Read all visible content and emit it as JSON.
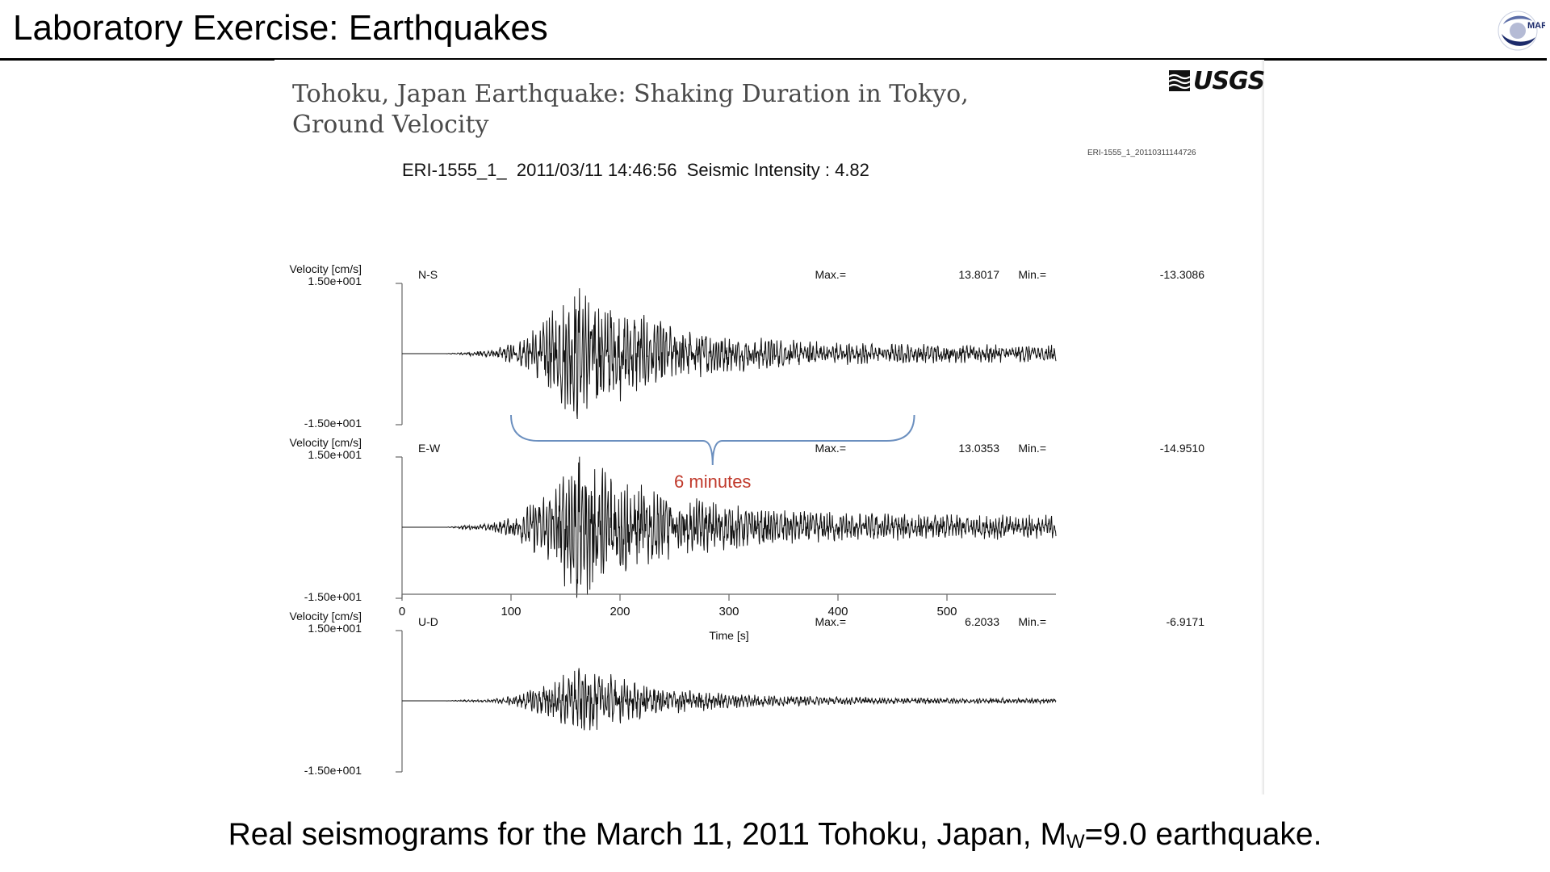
{
  "slide": {
    "title": "Laboratory Exercise: Earthquakes",
    "logo_text": "MARE"
  },
  "figure": {
    "source_logo": "USGS",
    "title_line1": "Tohoku, Japan Earthquake: Shaking Duration in Tokyo,",
    "title_line2": "Ground Velocity",
    "record_id_small": "ERI-1555_1_20110311144726"
  },
  "chart_data": {
    "type": "line",
    "title": "ERI-1555_1_  2011/03/11 14:46:56  Seismic Intensity : 4.82",
    "xlabel": "Time [s]",
    "xlim": [
      0,
      600
    ],
    "xticks": [
      0,
      100,
      200,
      300,
      400,
      500
    ],
    "series": [
      {
        "name": "N-S",
        "ylabel": "Velocity [cm/s]",
        "ymax_label": "1.50e+001",
        "ymin_label": "-1.50e+001",
        "ylim": [
          -15,
          15
        ],
        "max_label": "Max.=",
        "max_value": "13.8017",
        "min_label": "Min.=",
        "min_value": "-13.3086",
        "onset_s": 60,
        "peak_s": 160,
        "peak_amp": 13.8,
        "tail_amp": 1.6
      },
      {
        "name": "E-W",
        "ylabel": "Velocity [cm/s]",
        "ymax_label": "1.50e+001",
        "ymin_label": "-1.50e+001",
        "ylim": [
          -15,
          15
        ],
        "max_label": "Max.=",
        "max_value": "13.0353",
        "min_label": "Min.=",
        "min_value": "-14.9510",
        "onset_s": 60,
        "peak_s": 160,
        "peak_amp": 14.9,
        "tail_amp": 2.2
      },
      {
        "name": "U-D",
        "ylabel": "Velocity [cm/s]",
        "ymax_label": "1.50e+001",
        "ymin_label": "-1.50e+001",
        "ylim": [
          -15,
          15
        ],
        "max_label": "Max.=",
        "max_value": "6.2033",
        "min_label": "Min.=",
        "min_value": "-6.9171",
        "onset_s": 60,
        "peak_s": 160,
        "peak_amp": 6.9,
        "tail_amp": 0.5
      }
    ],
    "annotations": [
      {
        "text": "6 minutes",
        "from_s": 100,
        "to_s": 470,
        "color": "#c0392b"
      }
    ]
  },
  "caption": {
    "prefix": "Real seismograms for the March 11, 2011 Tohoku, Japan, M",
    "subscript": "W",
    "suffix": "=9.0 earthquake."
  }
}
